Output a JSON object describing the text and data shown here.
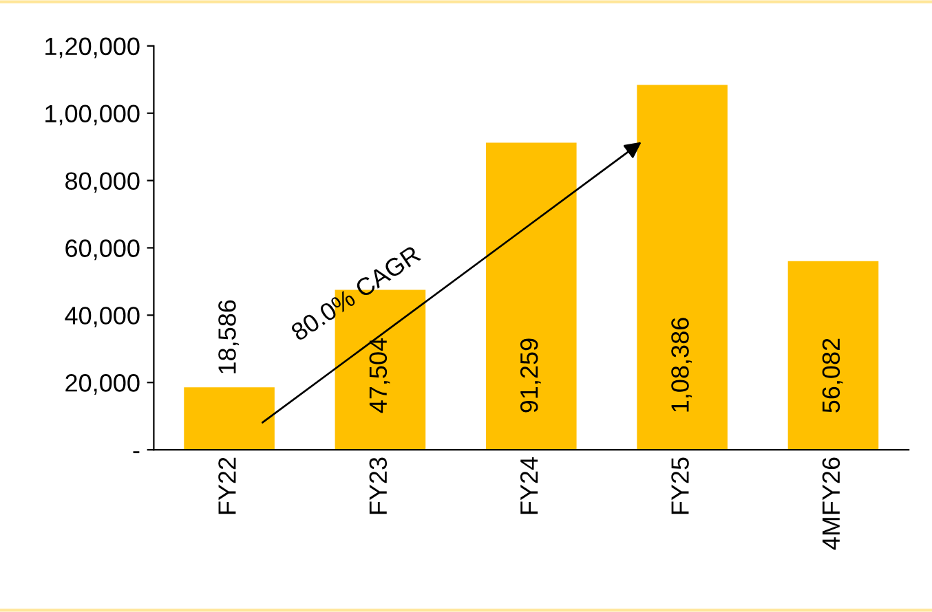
{
  "chart_data": {
    "type": "bar",
    "categories": [
      "FY22",
      "FY23",
      "FY24",
      "FY25",
      "4MFY26"
    ],
    "values": [
      18586,
      47504,
      91259,
      108386,
      56082
    ],
    "value_labels": [
      "18,586",
      "47,504",
      "91,259",
      "1,08,386",
      "56,082"
    ],
    "color": "#ffc000",
    "ylim": [
      0,
      120000
    ],
    "yticks": [
      {
        "value": 0,
        "label": "-"
      },
      {
        "value": 20000,
        "label": "20,000"
      },
      {
        "value": 40000,
        "label": "40,000"
      },
      {
        "value": 60000,
        "label": "60,000"
      },
      {
        "value": 80000,
        "label": "80,000"
      },
      {
        "value": 100000,
        "label": "1,00,000"
      },
      {
        "value": 120000,
        "label": "1,20,000"
      }
    ],
    "annotations": [
      "80.0% CAGR"
    ],
    "grid": false,
    "legend": false
  }
}
